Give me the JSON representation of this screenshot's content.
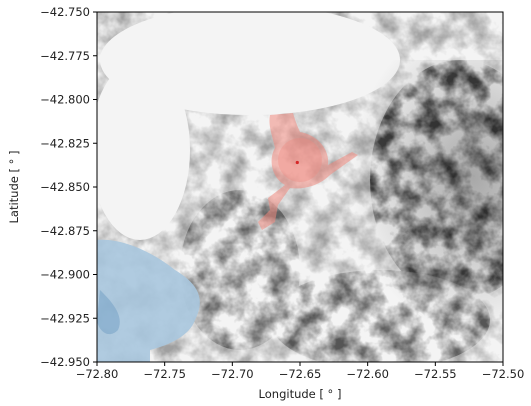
{
  "chart_data": {
    "type": "map",
    "xlabel": "Longitude [ ° ]",
    "ylabel": "Latitude [ ° ]",
    "xlim": [
      -72.8,
      -72.5
    ],
    "ylim": [
      -42.95,
      -42.75
    ],
    "xticks": [
      {
        "value": -72.8,
        "label": "−72.80"
      },
      {
        "value": -72.75,
        "label": "−72.75"
      },
      {
        "value": -72.7,
        "label": "−72.70"
      },
      {
        "value": -72.65,
        "label": "−72.65"
      },
      {
        "value": -72.6,
        "label": "−72.60"
      },
      {
        "value": -72.55,
        "label": "−72.55"
      },
      {
        "value": -72.5,
        "label": "−72.50"
      }
    ],
    "yticks": [
      {
        "value": -42.95,
        "label": "−42.950"
      },
      {
        "value": -42.925,
        "label": "−42.925"
      },
      {
        "value": -42.9,
        "label": "−42.900"
      },
      {
        "value": -42.875,
        "label": "−42.875"
      },
      {
        "value": -42.85,
        "label": "−42.850"
      },
      {
        "value": -42.825,
        "label": "−42.825"
      },
      {
        "value": -42.8,
        "label": "−42.800"
      },
      {
        "value": -42.775,
        "label": "−42.775"
      },
      {
        "value": -42.75,
        "label": "−42.750"
      }
    ],
    "marker": {
      "x": -72.652,
      "y": -42.836,
      "color": "#d62728"
    }
  }
}
